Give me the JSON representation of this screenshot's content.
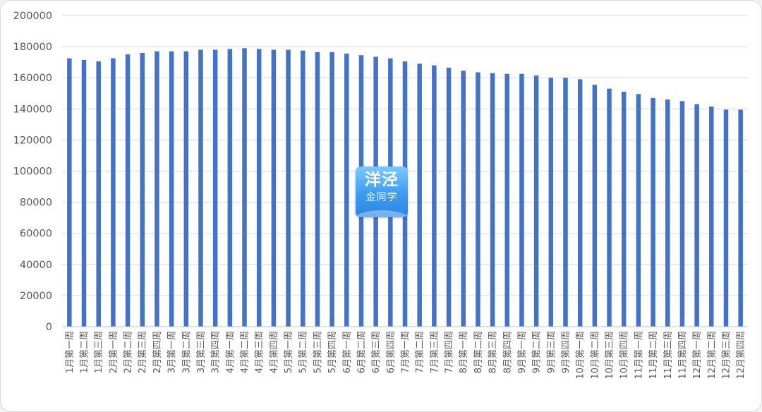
{
  "chart_data": {
    "type": "bar",
    "title": "",
    "xlabel": "",
    "ylabel": "",
    "ylim": [
      0,
      200000
    ],
    "yticks": [
      0,
      20000,
      40000,
      60000,
      80000,
      100000,
      120000,
      140000,
      160000,
      180000,
      200000
    ],
    "grid": true,
    "legend": "none",
    "bar_color": "#4472c4",
    "categories": [
      "1月第一周",
      "1月第二周",
      "1月第三周",
      "2月第一周",
      "2月第二周",
      "2月第三周",
      "2月第四周",
      "3月第一周",
      "3月第二周",
      "3月第三周",
      "3月第四周",
      "4月第一周",
      "4月第二周",
      "4月第三周",
      "4月第四周",
      "5月第一周",
      "5月第二周",
      "5月第三周",
      "5月第四周",
      "6月第一周",
      "6月第二周",
      "6月第三周",
      "6月第四周",
      "7月第一周",
      "7月第二周",
      "7月第三周",
      "7月第四周",
      "8月第一周",
      "8月第二周",
      "8月第三周",
      "8月第四周",
      "9月第一周",
      "9月第二周",
      "9月第三周",
      "9月第四周",
      "10月第一周",
      "10月第二周",
      "10月第三周",
      "10月第四周",
      "11月第一周",
      "11月第二周",
      "11月第三周",
      "11月第四周",
      "12月第一周",
      "12月第二周",
      "12月第三周",
      "12月第四周"
    ],
    "values": [
      172500,
      171500,
      170500,
      172500,
      175000,
      176000,
      177000,
      177000,
      177000,
      178000,
      178000,
      178500,
      179000,
      178500,
      178000,
      178000,
      177500,
      176500,
      176500,
      175500,
      174500,
      173500,
      172500,
      170500,
      169000,
      168000,
      166500,
      164500,
      163500,
      163000,
      162500,
      162500,
      161500,
      160000,
      160000,
      159000,
      155500,
      153000,
      151000,
      149500,
      147000,
      146000,
      145000,
      143000,
      141500,
      139500,
      139500
    ]
  },
  "watermark": {
    "line1": "洋泾",
    "line2": "金同学"
  }
}
